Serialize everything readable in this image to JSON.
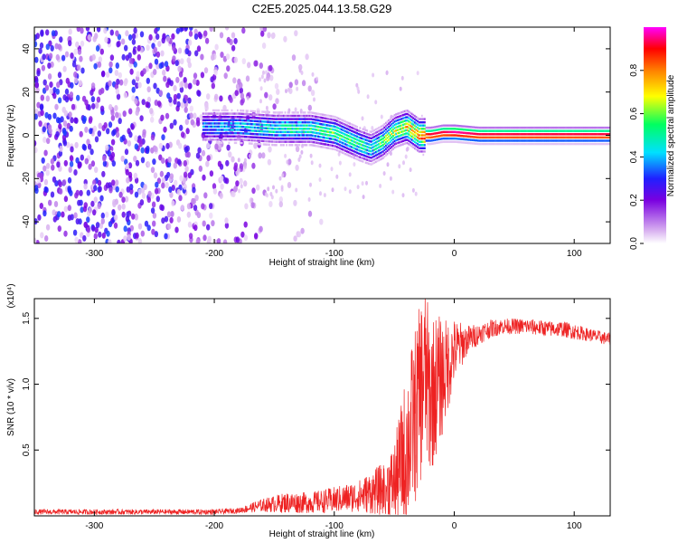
{
  "title": "C2E5.2025.044.13.58.G29",
  "chart_data": [
    {
      "type": "heatmap",
      "xlabel": "Height of straight line (km)",
      "ylabel": "Frequency (Hz)",
      "xlim": [
        -350,
        130
      ],
      "ylim": [
        -50,
        50
      ],
      "xticks": [
        -300,
        -200,
        -100,
        0,
        100
      ],
      "yticks": [
        -40,
        -20,
        0,
        20,
        40
      ],
      "colorbar": {
        "label": "Normalized spectral amplitude",
        "range": [
          0.0,
          1.0
        ],
        "ticks": [
          0.0,
          0.2,
          0.4,
          0.6,
          0.8
        ],
        "colormap": [
          "#ffffff",
          "#d8b0f0",
          "#7a00e0",
          "#2020ff",
          "#00e0ff",
          "#00ff60",
          "#ffff00",
          "#ff8000",
          "#ff0000",
          "#ff00ff"
        ]
      },
      "ridge_frequency_hz": {
        "x": [
          -210,
          -180,
          -150,
          -120,
          -100,
          -80,
          -70,
          -60,
          -50,
          -40,
          -30,
          -20,
          -10,
          0,
          20,
          60,
          100,
          130
        ],
        "y": [
          4,
          4,
          3,
          3,
          1,
          -4,
          -6,
          -3,
          2,
          4,
          0,
          0,
          1,
          1,
          0,
          0,
          0,
          0
        ],
        "peak_amplitude": [
          0.4,
          0.45,
          0.5,
          0.55,
          0.6,
          0.55,
          0.5,
          0.6,
          0.65,
          0.7,
          0.8,
          0.95,
          0.95,
          1.0,
          0.95,
          0.95,
          0.95,
          0.95
        ]
      },
      "noise_region_x": [
        -350,
        -180
      ]
    },
    {
      "type": "line",
      "xlabel": "Height of straight line (km)",
      "ylabel": "SNR (10 * v/v)",
      "y_scale_label": "(x10⁴)",
      "xlim": [
        -350,
        130
      ],
      "ylim": [
        0,
        1.65
      ],
      "xticks": [
        -300,
        -200,
        -100,
        0,
        100
      ],
      "yticks": [
        0.5,
        1.0,
        1.5
      ],
      "series": [
        {
          "color": "#ee2222",
          "x": [
            -350,
            -300,
            -250,
            -200,
            -180,
            -160,
            -140,
            -120,
            -100,
            -80,
            -60,
            -50,
            -40,
            -30,
            -25,
            -20,
            -15,
            -10,
            -5,
            0,
            10,
            20,
            30,
            40,
            50,
            60,
            70,
            80,
            90,
            100,
            110,
            120,
            130
          ],
          "y": [
            0.03,
            0.03,
            0.03,
            0.03,
            0.04,
            0.08,
            0.1,
            0.1,
            0.12,
            0.15,
            0.2,
            0.25,
            0.5,
            0.85,
            1.1,
            0.9,
            1.0,
            1.05,
            1.15,
            1.25,
            1.33,
            1.38,
            1.42,
            1.44,
            1.44,
            1.44,
            1.43,
            1.42,
            1.42,
            1.4,
            1.38,
            1.36,
            1.34
          ],
          "noise_amplitude": [
            0.02,
            0.02,
            0.02,
            0.02,
            0.02,
            0.05,
            0.08,
            0.08,
            0.1,
            0.12,
            0.2,
            0.3,
            0.6,
            0.7,
            0.7,
            0.6,
            0.55,
            0.45,
            0.35,
            0.25,
            0.12,
            0.08,
            0.07,
            0.06,
            0.06,
            0.06,
            0.06,
            0.06,
            0.06,
            0.06,
            0.05,
            0.05,
            0.05
          ]
        }
      ]
    }
  ]
}
